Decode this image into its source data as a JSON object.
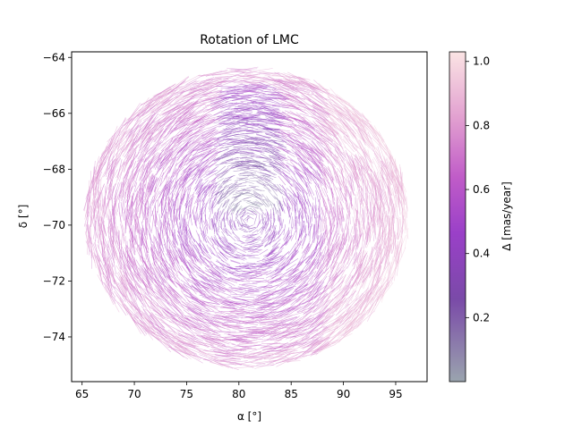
{
  "chart_data": {
    "type": "quiver",
    "title": "Rotation of LMC",
    "xlabel": "α [°]",
    "ylabel": "δ [°]",
    "xlim": [
      64,
      98
    ],
    "ylim": [
      -75.6,
      -63.8
    ],
    "xticks": [
      65,
      70,
      75,
      80,
      85,
      90,
      95
    ],
    "yticks": [
      -64,
      -66,
      -68,
      -70,
      -72,
      -74
    ],
    "grid": false,
    "field": {
      "center": [
        80.9,
        -69.8
      ],
      "extent_ra": [
        65,
        96.5
      ],
      "extent_dec": [
        -75.2,
        -64.3
      ],
      "rotation": "clockwise",
      "color_encodes": "Δ [mas/year]"
    },
    "colorbar": {
      "label": "Δ [mas/year]",
      "range": [
        0.0,
        1.03
      ],
      "ticks": [
        0.2,
        0.4,
        0.6,
        0.8,
        1.0
      ],
      "colors": [
        "#9aa4ae",
        "#7a4aa8",
        "#9a40c8",
        "#c05cc8",
        "#e2a0d0",
        "#fbe4e4"
      ]
    }
  }
}
